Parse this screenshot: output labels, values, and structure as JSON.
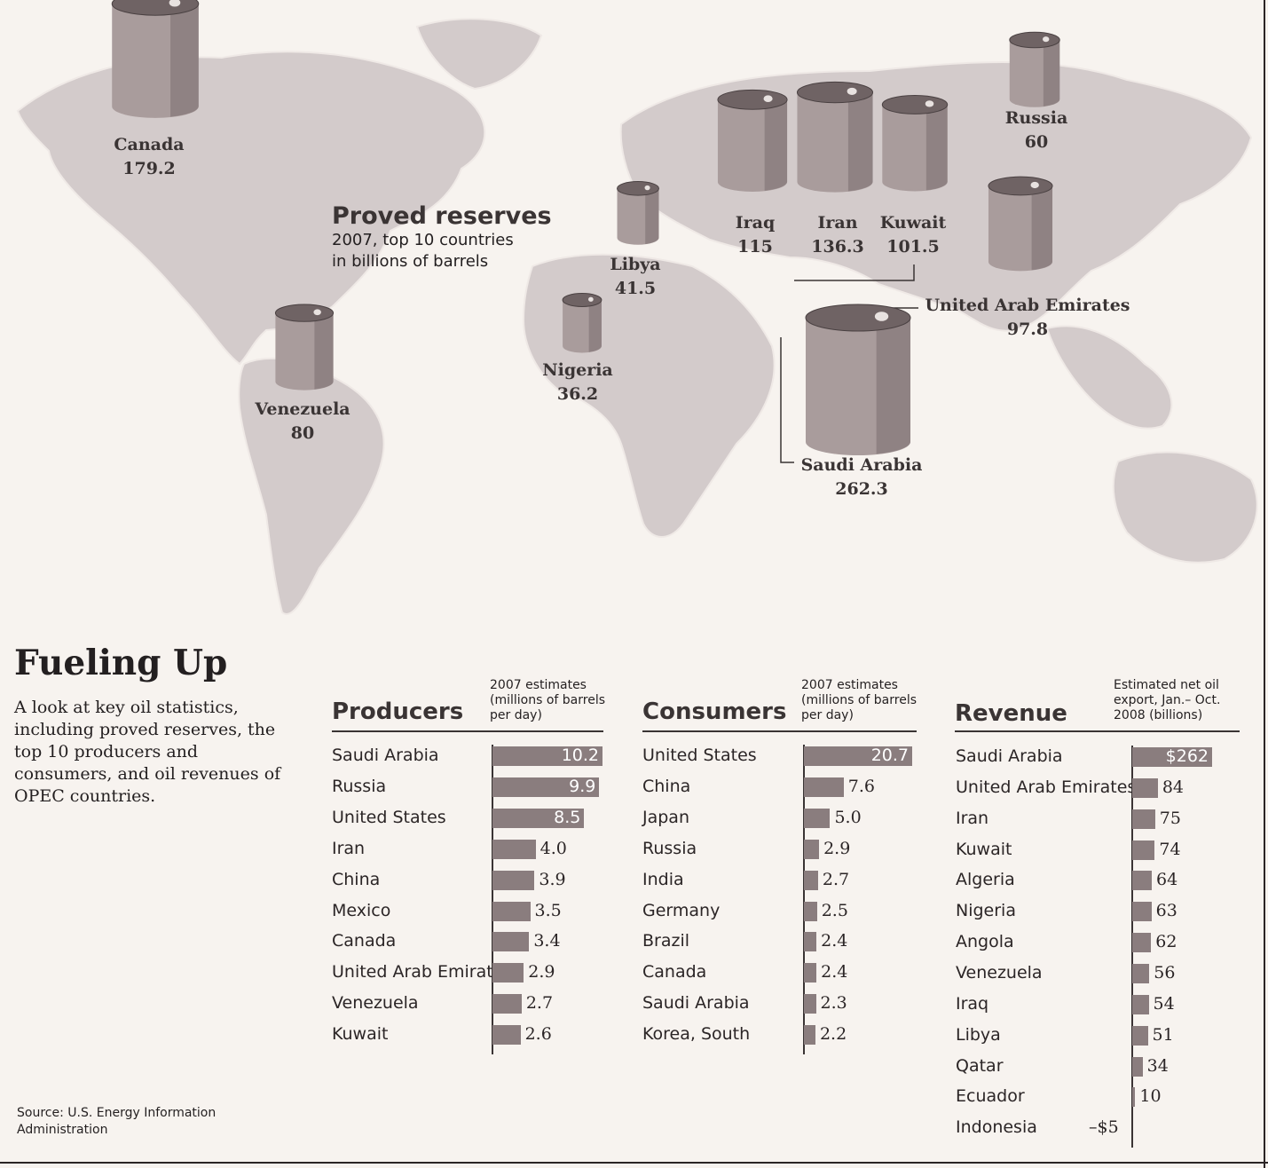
{
  "header": {
    "title": "Fueling Up",
    "intro": "A look at key oil statistics, including proved reserves, the top 10 producers and consumers, and oil revenues of OPEC countries."
  },
  "source": "Source: U.S. Energy Information Administration",
  "colors": {
    "bar": "#8a7d7e",
    "map": "#d3cbcb",
    "barrel": "#a99c9c",
    "text": "#231f20"
  },
  "chart_data": [
    {
      "type": "bubble-map",
      "title": "Proved reserves",
      "subtitle": "2007, top 10 countries in billions of barrels",
      "points": [
        {
          "label": "Canada",
          "value": 179.2
        },
        {
          "label": "Russia",
          "value": 60
        },
        {
          "label": "Iraq",
          "value": 115
        },
        {
          "label": "Iran",
          "value": 136.3
        },
        {
          "label": "Kuwait",
          "value": 101.5
        },
        {
          "label": "Libya",
          "value": 41.5
        },
        {
          "label": "United Arab Emirates",
          "value": 97.8
        },
        {
          "label": "Nigeria",
          "value": 36.2
        },
        {
          "label": "Venezuela",
          "value": 80
        },
        {
          "label": "Saudi Arabia",
          "value": 262.3
        }
      ]
    },
    {
      "type": "bar",
      "title": "Producers",
      "note": "2007 estimates (millions of barrels per day)",
      "categories": [
        "Saudi Arabia",
        "Russia",
        "United States",
        "Iran",
        "China",
        "Mexico",
        "Canada",
        "United Arab Emirates",
        "Venezuela",
        "Kuwait"
      ],
      "values": [
        10.2,
        9.9,
        8.5,
        4.0,
        3.9,
        3.5,
        3.4,
        2.9,
        2.7,
        2.6
      ],
      "labels": [
        "10.2",
        "9.9",
        "8.5",
        "4.0",
        "3.9",
        "3.5",
        "3.4",
        "2.9",
        "2.7",
        "2.6"
      ]
    },
    {
      "type": "bar",
      "title": "Consumers",
      "note": "2007 estimates (millions of barrels per day)",
      "categories": [
        "United States",
        "China",
        "Japan",
        "Russia",
        "India",
        "Germany",
        "Brazil",
        "Canada",
        "Saudi Arabia",
        "Korea, South"
      ],
      "values": [
        20.7,
        7.6,
        5.0,
        2.9,
        2.7,
        2.5,
        2.4,
        2.4,
        2.3,
        2.2
      ],
      "labels": [
        "20.7",
        "7.6",
        "5.0",
        "2.9",
        "2.7",
        "2.5",
        "2.4",
        "2.4",
        "2.3",
        "2.2"
      ]
    },
    {
      "type": "bar",
      "title": "Revenue",
      "note": "Estimated net oil export, Jan.– Oct. 2008 (billions)",
      "categories": [
        "Saudi Arabia",
        "United Arab Emirates",
        "Iran",
        "Kuwait",
        "Algeria",
        "Nigeria",
        "Angola",
        "Venezuela",
        "Iraq",
        "Libya",
        "Qatar",
        "Ecuador",
        "Indonesia"
      ],
      "values": [
        262,
        84,
        75,
        74,
        64,
        63,
        62,
        56,
        54,
        51,
        34,
        10,
        -5
      ],
      "labels": [
        "$262",
        "84",
        "75",
        "74",
        "64",
        "63",
        "62",
        "56",
        "54",
        "51",
        "34",
        "10",
        "–$5"
      ]
    }
  ]
}
